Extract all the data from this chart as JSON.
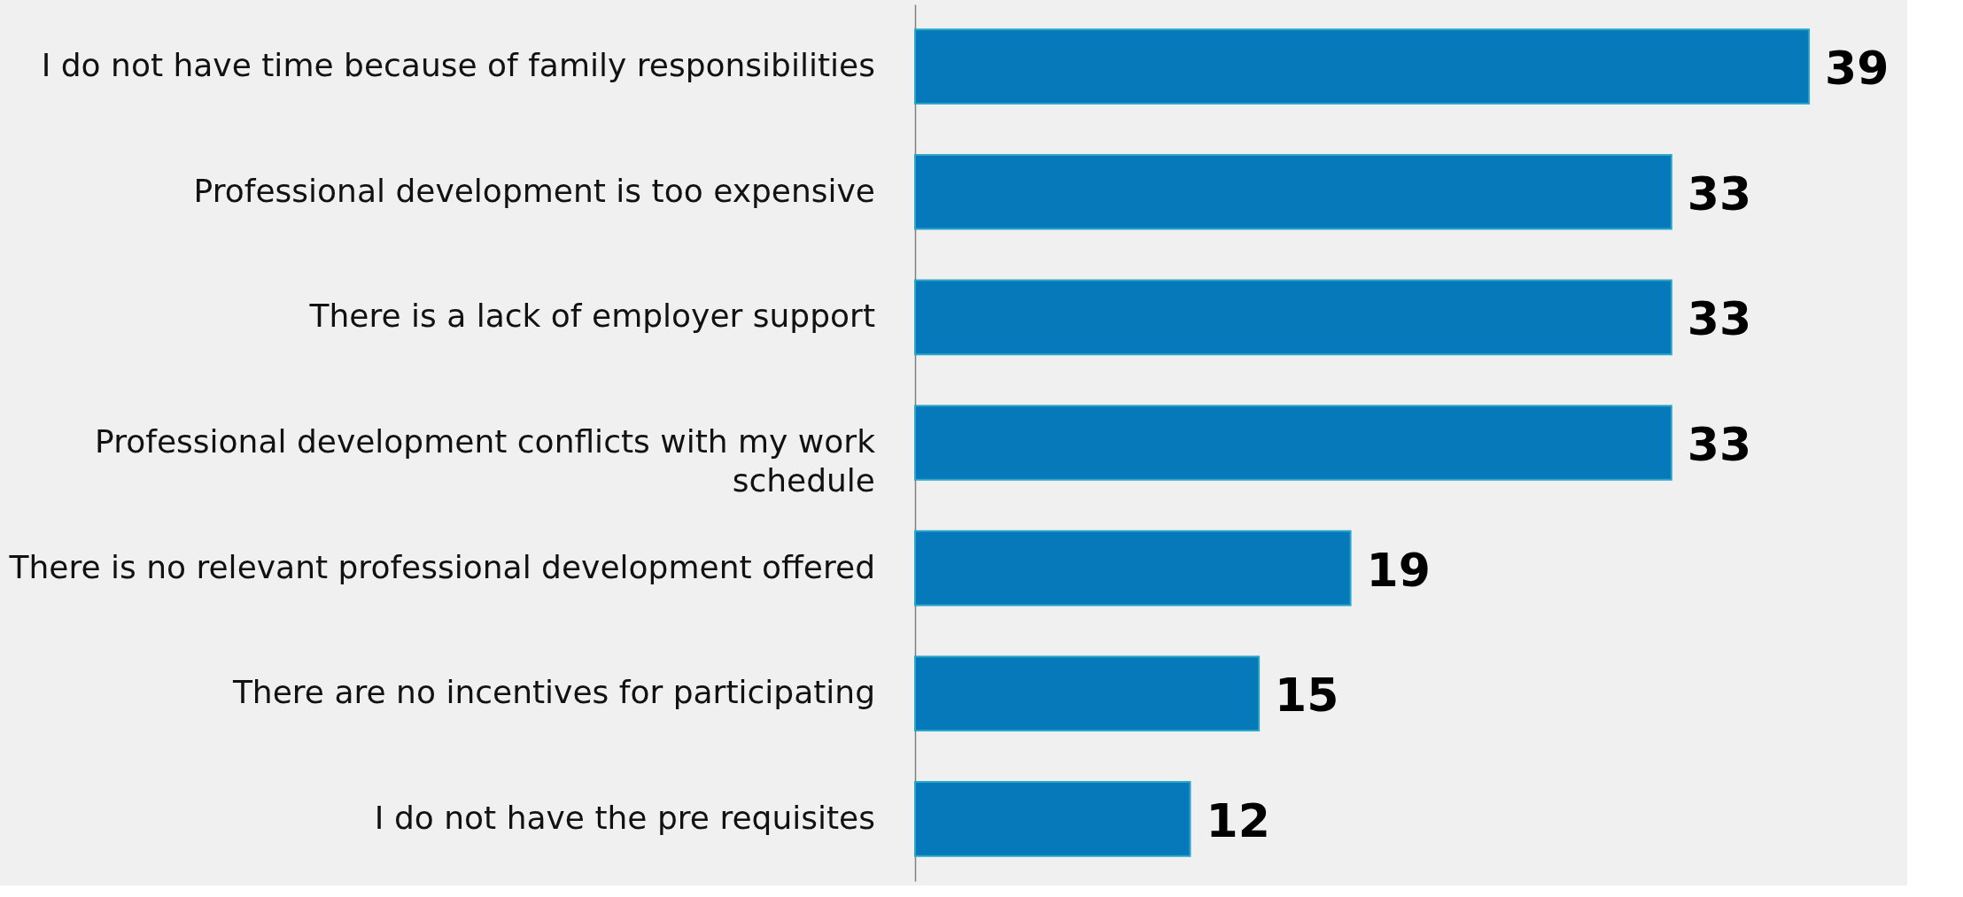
{
  "chart_data": {
    "type": "bar",
    "orientation": "horizontal",
    "categories": [
      "I do not have time because of family responsibilities",
      "Professional development is too expensive",
      "There is a lack of employer support",
      "Professional development conflicts with my work schedule",
      "There is no relevant professional development offered",
      "There are no incentives for participating",
      "I do not have the pre requisites"
    ],
    "values": [
      39,
      33,
      33,
      33,
      19,
      15,
      12
    ],
    "color": "#0579b9",
    "data_labels": true
  }
}
